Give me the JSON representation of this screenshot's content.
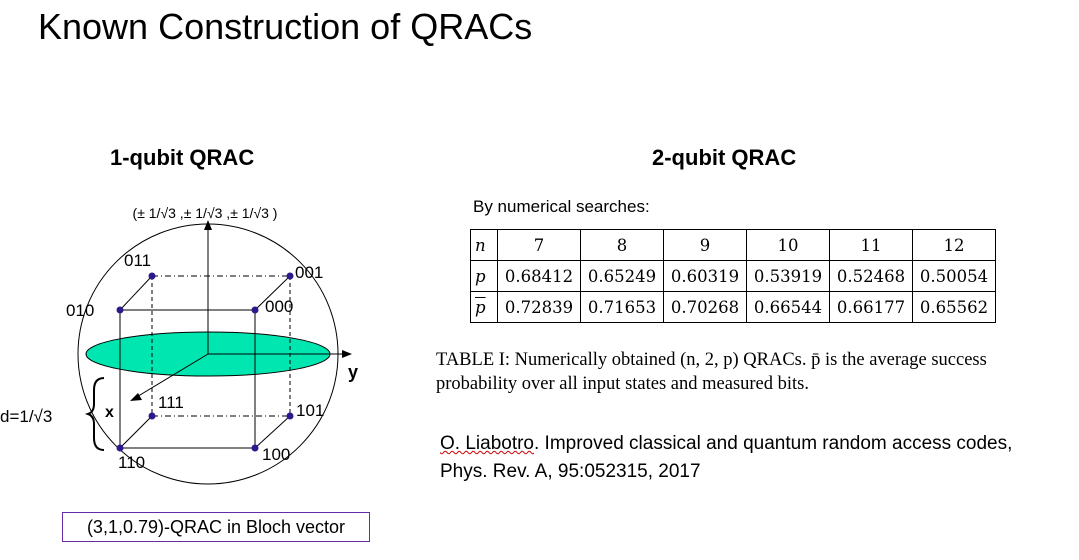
{
  "title": "Known Construction of QRACs",
  "left_panel": {
    "heading": "1-qubit QRAC",
    "coordinate_label": "(± 1/√3 ,± 1/√3 ,± 1/√3 )",
    "vertex_labels": {
      "v011": "011",
      "v001": "001",
      "v010": "010",
      "v000": "000",
      "v111": "111",
      "v101": "101",
      "v110": "110",
      "v100": "100"
    },
    "axis_labels": {
      "x": "x",
      "y": "y"
    },
    "distance_label": "d=1/√3",
    "caption": "(3,1,0.79)-QRAC in Bloch vector",
    "colors": {
      "equator": "#00e6b0",
      "vertex": "#2a1a8c",
      "caption_border": "#6a2aa6"
    }
  },
  "right_panel": {
    "heading": "2-qubit QRAC",
    "search_label": "By numerical searches:",
    "table": {
      "row_n": {
        "label": "n",
        "values": [
          "7",
          "8",
          "9",
          "10",
          "11",
          "12"
        ]
      },
      "row_p": {
        "label": "p",
        "values": [
          "0.68412",
          "0.65249",
          "0.60319",
          "0.53919",
          "0.52468",
          "0.50054"
        ]
      },
      "row_pbar": {
        "label": "p",
        "values": [
          "0.72839",
          "0.71653",
          "0.70268",
          "0.66544",
          "0.66177",
          "0.65562"
        ]
      }
    },
    "table_caption": "TABLE I: Numerically obtained (n, 2, p) QRACs. p̄ is the average success probability over all input states and measured bits.",
    "reference": {
      "author": "O. Liabotro",
      "rest": ". Improved classical and quantum random access codes, Phys. Rev. A, 95:052315, 2017"
    }
  }
}
